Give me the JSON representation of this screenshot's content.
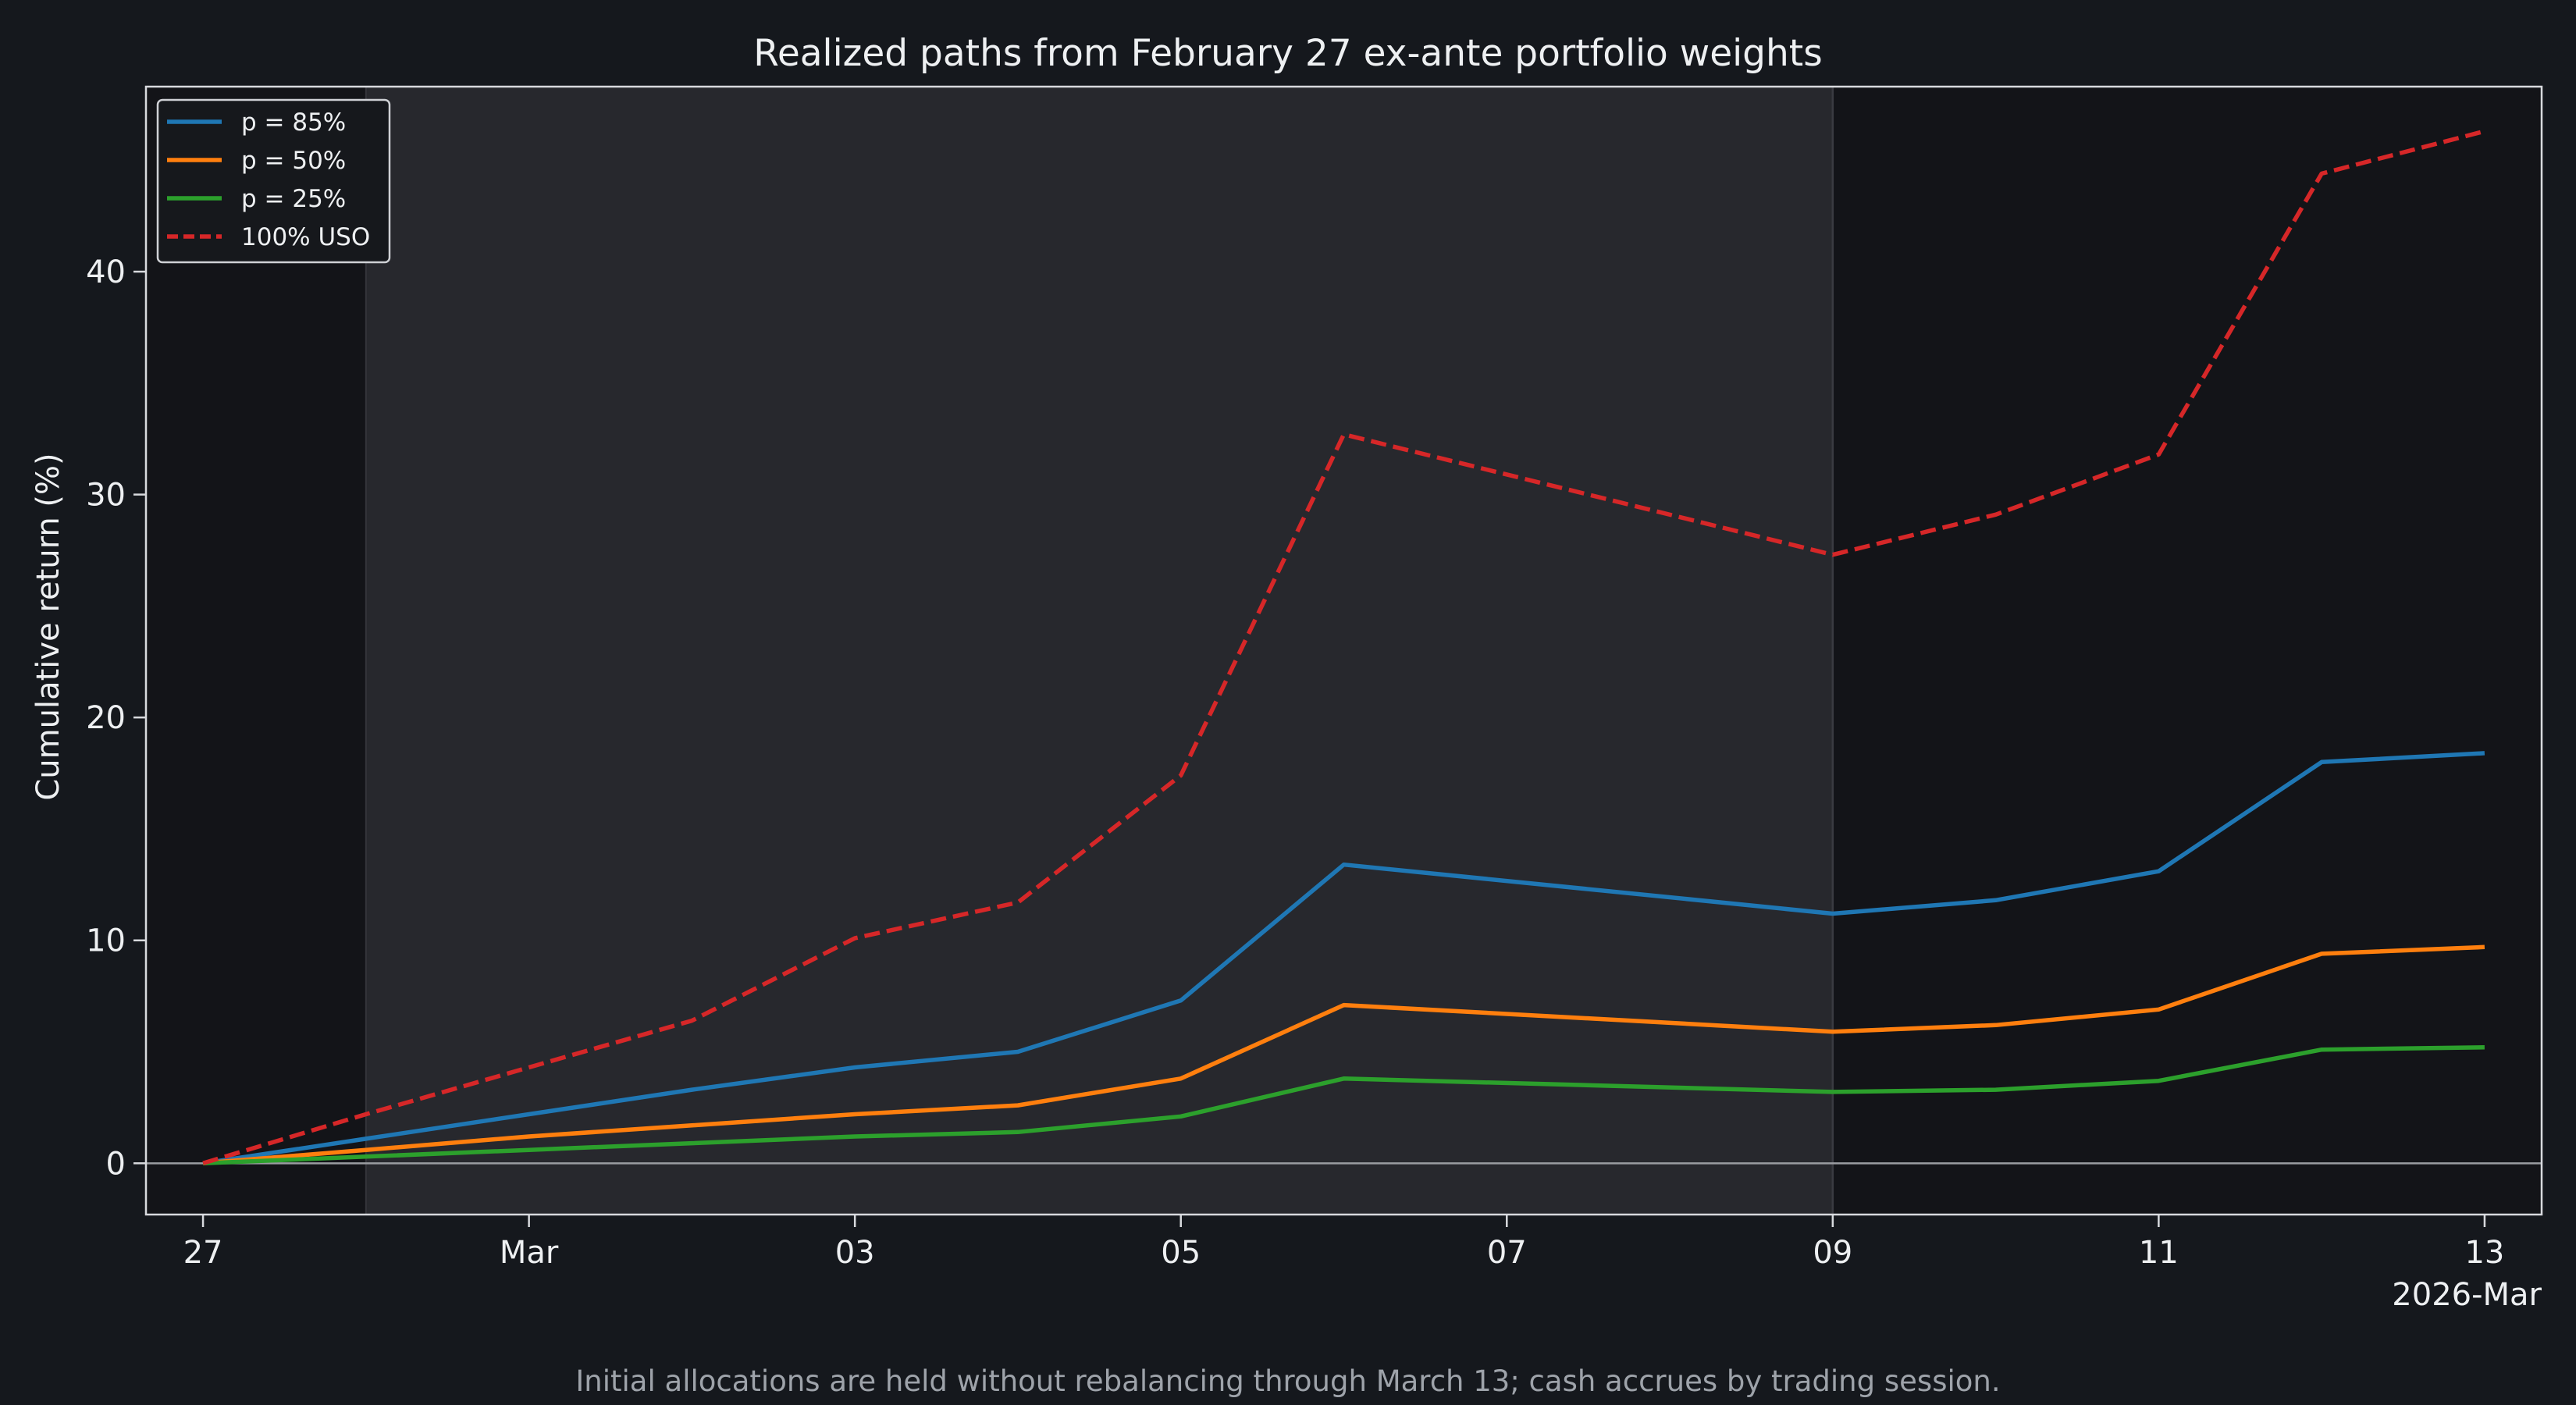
{
  "chart_data": {
    "type": "line",
    "title": "Realized paths from February 27 ex-ante portfolio weights",
    "xlabel": "",
    "ylabel": "Cumulative return (%)",
    "x_offset_label": "2026-Mar",
    "footnote": "Initial allocations are held without rebalancing through March 13; cash accrues by trading session.",
    "x": [
      "2026-02-27",
      "2026-02-28",
      "2026-03-01",
      "2026-03-02",
      "2026-03-03",
      "2026-03-04",
      "2026-03-05",
      "2026-03-06",
      "2026-03-09",
      "2026-03-10",
      "2026-03-11",
      "2026-03-12",
      "2026-03-13"
    ],
    "xlim": [
      "2026-02-26.65",
      "2026-03-13.35"
    ],
    "ylim": [
      -2.3,
      48.3
    ],
    "x_ticks": [
      {
        "date": "2026-02-27",
        "label": "27"
      },
      {
        "date": "2026-03-01",
        "label": "Mar"
      },
      {
        "date": "2026-03-03",
        "label": "03"
      },
      {
        "date": "2026-03-05",
        "label": "05"
      },
      {
        "date": "2026-03-07",
        "label": "07"
      },
      {
        "date": "2026-03-09",
        "label": "09"
      },
      {
        "date": "2026-03-11",
        "label": "11"
      },
      {
        "date": "2026-03-13",
        "label": "13"
      }
    ],
    "y_ticks": [
      0,
      10,
      20,
      30,
      40
    ],
    "zero_line": true,
    "shaded_region": {
      "from": "2026-02-28",
      "to": "2026-03-09",
      "color": "#27282d"
    },
    "series": [
      {
        "name": "p = 85%",
        "color": "#1f77b4",
        "dashed": false,
        "values": [
          0.0,
          1.1,
          2.2,
          3.3,
          4.3,
          5.0,
          7.3,
          13.4,
          11.2,
          11.8,
          13.1,
          18.0,
          18.4
        ]
      },
      {
        "name": "p = 50%",
        "color": "#ff7f0e",
        "dashed": false,
        "values": [
          0.0,
          0.6,
          1.2,
          1.7,
          2.2,
          2.6,
          3.8,
          7.1,
          5.9,
          6.2,
          6.9,
          9.4,
          9.7
        ]
      },
      {
        "name": "p = 25%",
        "color": "#2ca02c",
        "dashed": false,
        "values": [
          0.0,
          0.3,
          0.6,
          0.9,
          1.2,
          1.4,
          2.1,
          3.8,
          3.2,
          3.3,
          3.7,
          5.1,
          5.2
        ]
      },
      {
        "name": "100% USO",
        "color": "#d62728",
        "dashed": true,
        "values": [
          0.0,
          2.2,
          4.3,
          6.4,
          10.1,
          11.7,
          17.4,
          32.7,
          27.3,
          29.1,
          31.8,
          44.4,
          46.3
        ]
      }
    ],
    "legend_position": "upper-left",
    "grid": false
  }
}
